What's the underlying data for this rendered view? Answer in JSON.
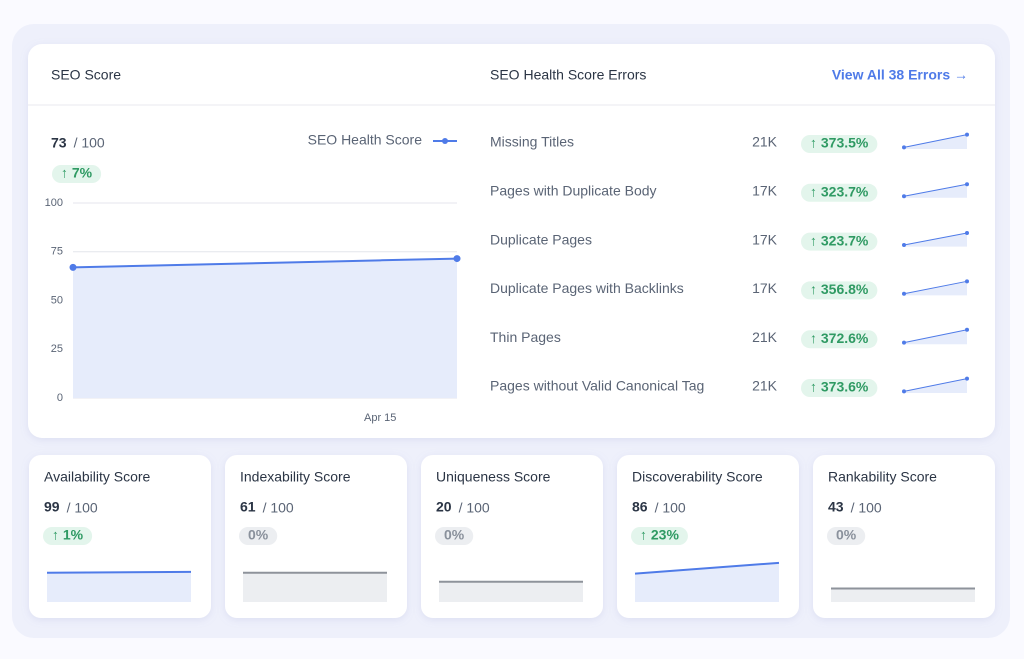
{
  "seo_score": {
    "title": "SEO Score",
    "score": 73,
    "max_label": "/ 100",
    "change": "↑ 7%"
  },
  "chart_data": {
    "type": "line",
    "categories": [
      null,
      null,
      null,
      null,
      "Apr 15",
      null
    ],
    "series": [
      {
        "name": "SEO Health Score",
        "color": "#4f7be8",
        "values": [
          67,
          67.9,
          68.8,
          69.7,
          70.6,
          71.5
        ]
      }
    ],
    "ylim": [
      0,
      100
    ],
    "yticks": [
      0,
      25,
      50,
      75,
      100
    ],
    "grid": true
  },
  "errors": {
    "title": "SEO Health Score Errors",
    "link": "View All 38 Errors →",
    "rows": [
      {
        "name": "Missing Titles",
        "count": "21K",
        "change": "↑ 373.5%",
        "trend": [
          10,
          90
        ]
      },
      {
        "name": "Pages with Duplicate Body",
        "count": "17K",
        "change": "↑ 323.7%",
        "trend": [
          10,
          85
        ]
      },
      {
        "name": "Duplicate Pages",
        "count": "17K",
        "change": "↑ 323.7%",
        "trend": [
          10,
          85
        ]
      },
      {
        "name": "Duplicate Pages with Backlinks",
        "count": "17K",
        "change": "↑ 356.8%",
        "trend": [
          10,
          88
        ]
      },
      {
        "name": "Thin Pages",
        "count": "21K",
        "change": "↑ 372.6%",
        "trend": [
          10,
          90
        ]
      },
      {
        "name": "Pages without Valid Canonical Tag",
        "count": "21K",
        "change": "↑ 373.6%",
        "trend": [
          10,
          90
        ]
      }
    ]
  },
  "cards": [
    {
      "title": "Availability Score",
      "score": 99,
      "max_label": "/ 100",
      "change": "↑ 1%",
      "color": "#4f7be8",
      "trend": [
        65,
        67
      ]
    },
    {
      "title": "Indexability Score",
      "score": 61,
      "max_label": "/ 100",
      "change": "0%",
      "color": "#8e939b",
      "trend": [
        65,
        65
      ]
    },
    {
      "title": "Uniqueness Score",
      "score": 20,
      "max_label": "/ 100",
      "change": "0%",
      "color": "#8e939b",
      "trend": [
        45,
        45
      ]
    },
    {
      "title": "Discoverability Score",
      "score": 86,
      "max_label": "/ 100",
      "change": "↑ 23%",
      "color": "#4f7be8",
      "trend": [
        63,
        87
      ]
    },
    {
      "title": "Rankability Score",
      "score": 43,
      "max_label": "/ 100",
      "change": "0%",
      "color": "#8e939b",
      "trend": [
        30,
        30
      ]
    }
  ]
}
